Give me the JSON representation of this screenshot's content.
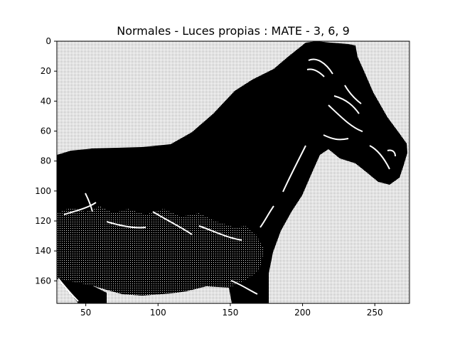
{
  "figure": {
    "title": "Normales - Luces propias : MATE - 3, 6, 9",
    "image_description_hidden": "",
    "axes": {
      "x": {
        "range": [
          30,
          274
        ],
        "ticks": [
          50,
          100,
          150,
          200,
          250
        ],
        "tick_labels": [
          "50",
          "100",
          "150",
          "200",
          "250"
        ]
      },
      "y": {
        "range": [
          175,
          0
        ],
        "inverted": true,
        "ticks": [
          0,
          20,
          40,
          60,
          80,
          100,
          120,
          140,
          160
        ],
        "tick_labels": [
          "0",
          "20",
          "40",
          "60",
          "80",
          "100",
          "120",
          "140",
          "160"
        ]
      }
    },
    "colors": {
      "background_dots": "#8a8a8a",
      "subject": "#000000",
      "highlight": "#ffffff"
    }
  }
}
